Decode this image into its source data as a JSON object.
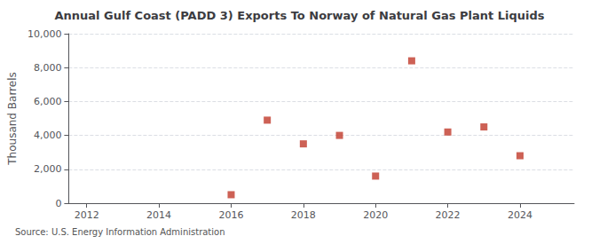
{
  "chart_data": {
    "type": "scatter",
    "title": "Annual Gulf Coast (PADD 3) Exports To Norway of Natural Gas Plant Liquids",
    "ylabel": "Thousand Barrels",
    "annotations": [
      "Source: U.S. Energy Information Administration"
    ],
    "x": [
      2016,
      2017,
      2018,
      2019,
      2020,
      2021,
      2022,
      2023,
      2024
    ],
    "values": [
      500,
      4900,
      3500,
      4000,
      1600,
      8400,
      4200,
      4500,
      2800
    ],
    "color": "#c0392b",
    "marker": "square",
    "xlim": [
      2011.5,
      2025.5
    ],
    "xticks": [
      2012,
      2014,
      2016,
      2018,
      2020,
      2022,
      2024
    ],
    "ylim": [
      0,
      10000
    ],
    "yticks": [
      0,
      {
        "value": 2000,
        "label": "2,000"
      },
      {
        "value": 4000,
        "label": "4,000"
      },
      {
        "value": 6000,
        "label": "6,000"
      },
      {
        "value": 8000,
        "label": "8,000"
      },
      {
        "value": 10000,
        "label": "10,000"
      }
    ],
    "grid": "y"
  }
}
